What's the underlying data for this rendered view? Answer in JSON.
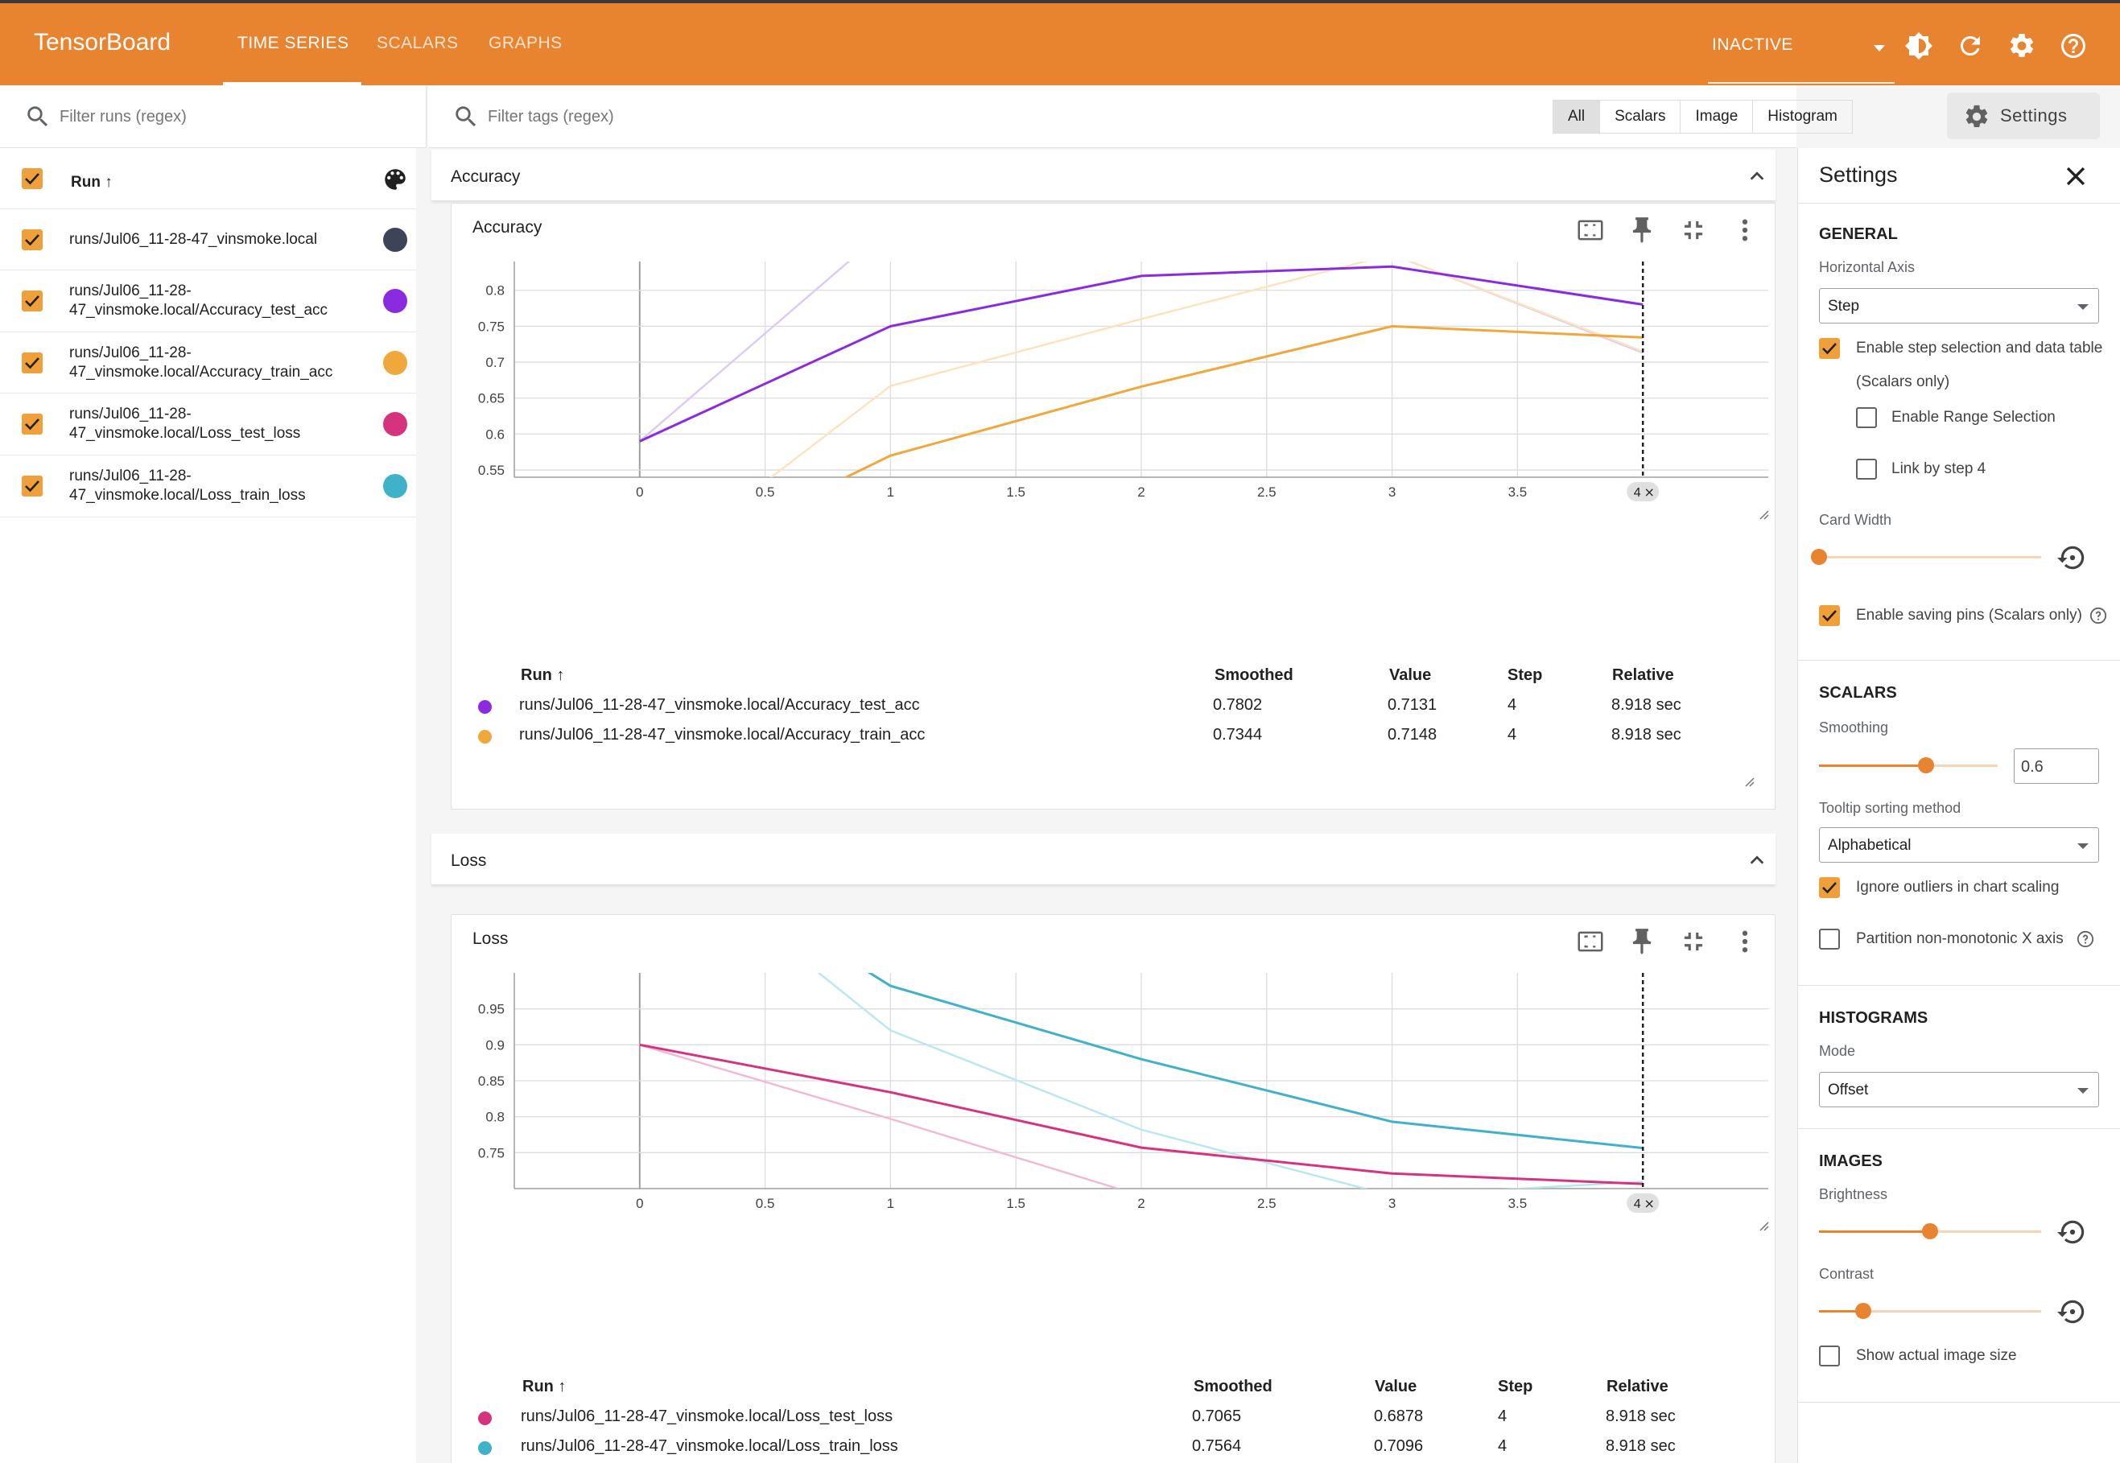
{
  "app": {
    "brand": "TensorBoard",
    "nav_tabs": [
      {
        "label": "TIME SERIES",
        "active": true
      },
      {
        "label": "SCALARS",
        "active": false
      },
      {
        "label": "GRAPHS",
        "active": false
      }
    ],
    "status": "INACTIVE",
    "accent_color": "#e8842f"
  },
  "runs_panel": {
    "filter_placeholder": "Filter runs (regex)",
    "header_label": "Run ↑",
    "runs": [
      {
        "line1": "runs/Jul06_11-28-47_vinsmoke.local",
        "line2": "",
        "color": "#3d4457"
      },
      {
        "line1": "runs/Jul06_11-28-",
        "line2": "47_vinsmoke.local/Accuracy_test_acc",
        "color": "#8a2be2"
      },
      {
        "line1": "runs/Jul06_11-28-",
        "line2": "47_vinsmoke.local/Accuracy_train_acc",
        "color": "#f0a83c"
      },
      {
        "line1": "runs/Jul06_11-28-",
        "line2": "47_vinsmoke.local/Loss_test_loss",
        "color": "#d6337f"
      },
      {
        "line1": "runs/Jul06_11-28-",
        "line2": "47_vinsmoke.local/Loss_train_loss",
        "color": "#3fb1c9"
      }
    ]
  },
  "main": {
    "tag_filter_placeholder": "Filter tags (regex)",
    "type_buttons": [
      "All",
      "Scalars",
      "Image",
      "Histogram"
    ],
    "settings_button": "Settings",
    "groups": [
      {
        "title": "Accuracy"
      },
      {
        "title": "Loss"
      }
    ]
  },
  "cards": {
    "accuracy": {
      "title": "Accuracy",
      "step_marker": "4",
      "table": {
        "headers": [
          "Run ↑",
          "Smoothed",
          "Value",
          "Step",
          "Relative"
        ],
        "rows": [
          {
            "run": "runs/Jul06_11-28-47_vinsmoke.local/Accuracy_test_acc",
            "smoothed": "0.7802",
            "value": "0.7131",
            "step": "4",
            "relative": "8.918 sec",
            "color": "#8a2be2"
          },
          {
            "run": "runs/Jul06_11-28-47_vinsmoke.local/Accuracy_train_acc",
            "smoothed": "0.7344",
            "value": "0.7148",
            "step": "4",
            "relative": "8.918 sec",
            "color": "#f0a83c"
          }
        ]
      }
    },
    "loss": {
      "title": "Loss",
      "step_marker": "4",
      "table": {
        "headers": [
          "Run ↑",
          "Smoothed",
          "Value",
          "Step",
          "Relative"
        ],
        "rows": [
          {
            "run": "runs/Jul06_11-28-47_vinsmoke.local/Loss_test_loss",
            "smoothed": "0.7065",
            "value": "0.6878",
            "step": "4",
            "relative": "8.918 sec",
            "color": "#d6337f"
          },
          {
            "run": "runs/Jul06_11-28-47_vinsmoke.local/Loss_train_loss",
            "smoothed": "0.7564",
            "value": "0.7096",
            "step": "4",
            "relative": "8.918 sec",
            "color": "#3fb1c9"
          }
        ]
      }
    }
  },
  "chart_data": [
    {
      "type": "line",
      "title": "Accuracy",
      "xlim": [
        -0.5,
        4.5
      ],
      "ylim": [
        0.54,
        0.84
      ],
      "x_ticks": [
        "0",
        "0.5",
        "1",
        "1.5",
        "2",
        "2.5",
        "3",
        "3.5"
      ],
      "y_ticks": [
        "0.55",
        "0.6",
        "0.65",
        "0.7",
        "0.75",
        "0.8"
      ],
      "grid": true,
      "series": [
        {
          "role": "raw",
          "color": "#dcc9f5",
          "x": [
            0,
            1,
            2,
            3,
            4
          ],
          "y": [
            0.59,
            0.89,
            0.95,
            0.85,
            0.713
          ]
        },
        {
          "role": "raw",
          "color": "#fde3bd",
          "x": [
            0,
            1,
            2,
            3,
            4
          ],
          "y": [
            0.4,
            0.667,
            0.76,
            0.85,
            0.715
          ]
        },
        {
          "role": "smoothed",
          "color": "#8a2be2",
          "x": [
            0,
            1,
            2,
            3,
            4
          ],
          "y": [
            0.59,
            0.75,
            0.82,
            0.833,
            0.7802
          ]
        },
        {
          "role": "smoothed",
          "color": "#f0a83c",
          "x": [
            0,
            1,
            2,
            3,
            4
          ],
          "y": [
            0.4,
            0.57,
            0.666,
            0.75,
            0.7344
          ]
        }
      ]
    },
    {
      "type": "line",
      "title": "Loss",
      "xlim": [
        -0.5,
        4.5
      ],
      "ylim": [
        0.7,
        1.0
      ],
      "x_ticks": [
        "0",
        "0.5",
        "1",
        "1.5",
        "2",
        "2.5",
        "3",
        "3.5"
      ],
      "y_ticks": [
        "0.75",
        "0.8",
        "0.85",
        "0.9",
        "0.95"
      ],
      "grid": true,
      "series": [
        {
          "role": "raw",
          "color": "#f2b7d3",
          "x": [
            0,
            1,
            2,
            3
          ],
          "y": [
            0.9,
            0.797,
            0.69,
            0.6
          ]
        },
        {
          "role": "raw",
          "color": "#b9e6f0",
          "x": [
            0,
            1,
            2,
            3,
            4
          ],
          "y": [
            1.2,
            0.92,
            0.782,
            0.69,
            0.7096
          ]
        },
        {
          "role": "smoothed",
          "color": "#d6337f",
          "x": [
            0,
            1,
            2,
            3,
            4
          ],
          "y": [
            0.9,
            0.834,
            0.757,
            0.721,
            0.7065
          ]
        },
        {
          "role": "smoothed",
          "color": "#3fb1c9",
          "x": [
            0,
            1,
            2,
            3,
            4
          ],
          "y": [
            1.2,
            0.982,
            0.88,
            0.793,
            0.7564
          ]
        }
      ]
    }
  ],
  "settings": {
    "title": "Settings",
    "general": {
      "section": "GENERAL",
      "horizontal_axis_label": "Horizontal Axis",
      "horizontal_axis_value": "Step",
      "step_selection_label": "Enable step selection and data table",
      "step_selection_sub": "(Scalars only)",
      "range_selection_label": "Enable Range Selection",
      "link_by_step_label": "Link by step 4",
      "card_width_label": "Card Width",
      "card_width_level": 0.0,
      "saving_pins_label": "Enable saving pins (Scalars only)"
    },
    "scalars": {
      "section": "SCALARS",
      "smoothing_label": "Smoothing",
      "smoothing_value": "0.6",
      "tooltip_label": "Tooltip sorting method",
      "tooltip_value": "Alphabetical",
      "ignore_outliers_label": "Ignore outliers in chart scaling",
      "partition_label": "Partition non-monotonic X axis"
    },
    "histograms": {
      "section": "HISTOGRAMS",
      "mode_label": "Mode",
      "mode_value": "Offset"
    },
    "images": {
      "section": "IMAGES",
      "brightness_label": "Brightness",
      "brightness_level": 0.5,
      "contrast_label": "Contrast",
      "contrast_level": 0.2,
      "actual_size_label": "Show actual image size"
    }
  }
}
